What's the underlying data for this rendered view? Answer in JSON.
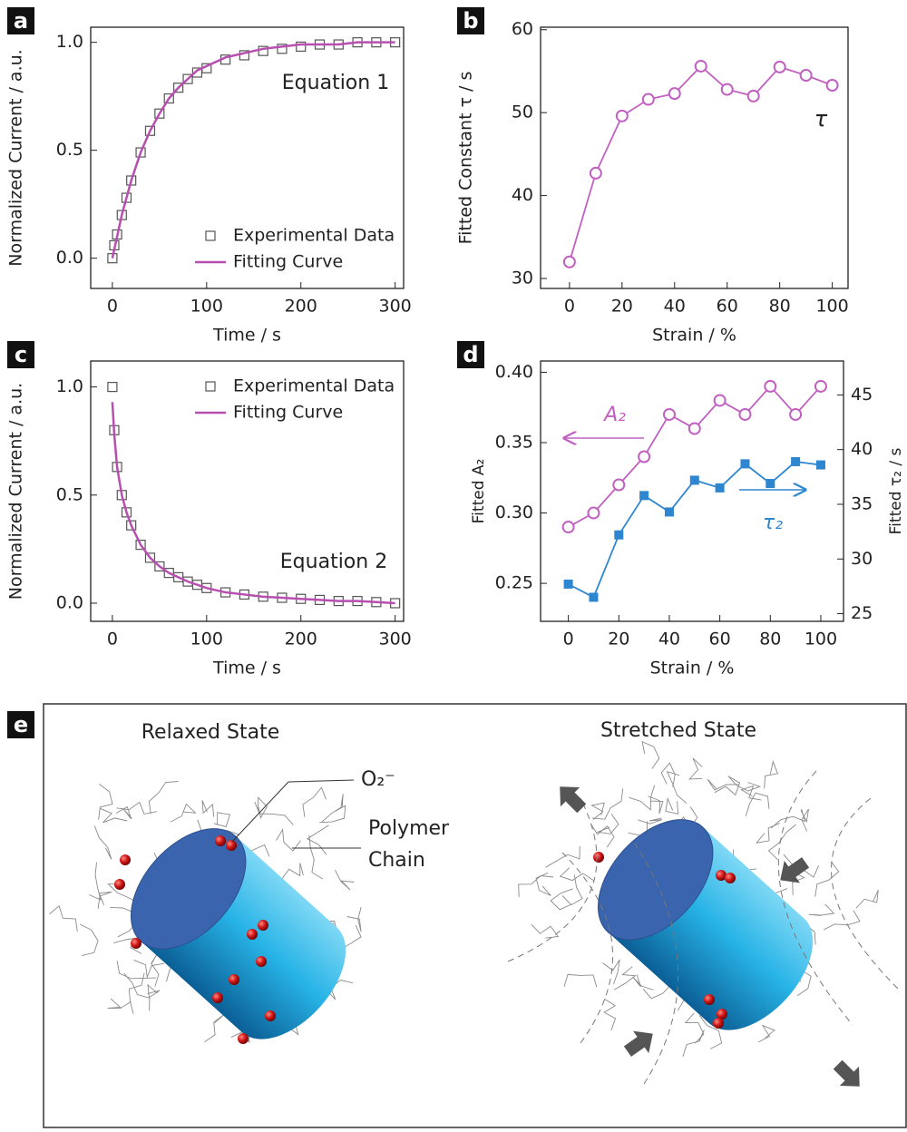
{
  "chart_data": [
    {
      "type": "line",
      "label": "a",
      "xlabel": "Time / s",
      "ylabel": "Normalized Current / a.u.",
      "annotations": [
        "Equation 1"
      ],
      "x": [
        0,
        2,
        5,
        10,
        15,
        20,
        30,
        40,
        50,
        60,
        70,
        80,
        90,
        100,
        120,
        140,
        160,
        180,
        200,
        220,
        240,
        260,
        280,
        300
      ],
      "series": [
        {
          "name": "Experimental Data",
          "color": "#555555",
          "marker": "square",
          "values": [
            0,
            0.06,
            0.11,
            0.2,
            0.28,
            0.36,
            0.49,
            0.59,
            0.67,
            0.74,
            0.79,
            0.83,
            0.86,
            0.88,
            0.92,
            0.94,
            0.96,
            0.97,
            0.98,
            0.99,
            0.99,
            1.0,
            1.0,
            1.0
          ]
        },
        {
          "name": "Fitting Curve",
          "color": "#b84fb0",
          "marker": "none",
          "values": [
            0,
            0.04,
            0.1,
            0.2,
            0.28,
            0.36,
            0.49,
            0.59,
            0.67,
            0.74,
            0.79,
            0.83,
            0.87,
            0.89,
            0.93,
            0.95,
            0.97,
            0.98,
            0.99,
            0.99,
            0.99,
            1.0,
            1.0,
            1.0
          ]
        }
      ],
      "xlim": [
        -23,
        309
      ],
      "ylim": [
        -0.14,
        1.07
      ],
      "xticks": [
        0,
        100,
        200,
        300
      ],
      "yticks": [
        {
          "value": 0,
          "label": "0.0"
        },
        0.5,
        {
          "value": 1,
          "label": "1.0"
        }
      ],
      "legend": "lower right"
    },
    {
      "type": "line",
      "label": "b",
      "xlabel": "Strain / %",
      "ylabel": "Fitted Constant τ / s",
      "annotations": [
        "τ"
      ],
      "x": [
        0,
        10,
        20,
        30,
        40,
        50,
        60,
        70,
        80,
        90,
        100
      ],
      "series": [
        {
          "color": "#c060c0",
          "marker": "circle",
          "values": [
            32,
            42.7,
            49.6,
            51.6,
            52.3,
            55.6,
            52.8,
            52.0,
            55.5,
            54.5,
            53.3
          ]
        }
      ],
      "xlim": [
        -11,
        106
      ],
      "ylim": [
        28.8,
        60.3
      ],
      "xticks": [
        0,
        20,
        40,
        60,
        80,
        100
      ],
      "yticks": [
        30,
        40,
        50,
        60
      ]
    },
    {
      "type": "line",
      "label": "c",
      "xlabel": "Time / s",
      "ylabel": "Normalized Current / a.u.",
      "annotations": [
        "Equation 2"
      ],
      "x": [
        0,
        2,
        5,
        10,
        15,
        20,
        30,
        40,
        50,
        60,
        70,
        80,
        90,
        100,
        120,
        140,
        160,
        180,
        200,
        220,
        240,
        260,
        280,
        300
      ],
      "series": [
        {
          "name": "Experimental Data",
          "color": "#555555",
          "marker": "square",
          "values": [
            1.0,
            0.8,
            0.63,
            0.5,
            0.42,
            0.36,
            0.27,
            0.21,
            0.17,
            0.14,
            0.12,
            0.1,
            0.085,
            0.07,
            0.05,
            0.04,
            0.03,
            0.025,
            0.02,
            0.015,
            0.01,
            0.01,
            0.005,
            0.0
          ]
        },
        {
          "name": "Fitting Curve",
          "color": "#b84fb0",
          "marker": "none",
          "values": [
            0.93,
            0.78,
            0.63,
            0.5,
            0.42,
            0.36,
            0.27,
            0.21,
            0.17,
            0.14,
            0.12,
            0.1,
            0.085,
            0.07,
            0.05,
            0.04,
            0.03,
            0.025,
            0.02,
            0.015,
            0.01,
            0.01,
            0.005,
            0.0
          ]
        }
      ],
      "xlim": [
        -23,
        309
      ],
      "ylim": [
        -0.084,
        1.12
      ],
      "xticks": [
        0,
        100,
        200,
        300
      ],
      "yticks": [
        {
          "value": 0,
          "label": "0.0"
        },
        0.5,
        {
          "value": 1,
          "label": "1.0"
        }
      ],
      "legend": "upper right"
    },
    {
      "type": "line",
      "label": "d",
      "xlabel": "Strain / %",
      "ylabel": "Fitted A₂",
      "y2label": "Fitted τ₂ / s",
      "annotations": [
        "A₂",
        "τ₂"
      ],
      "x": [
        0,
        10,
        20,
        30,
        40,
        50,
        60,
        70,
        80,
        90,
        100
      ],
      "series": [
        {
          "color": "#c060c0",
          "marker": "circle",
          "values": [
            0.29,
            0.3,
            0.32,
            0.34,
            0.37,
            0.36,
            0.38,
            0.37,
            0.39,
            0.37,
            0.39
          ]
        },
        {
          "color": "#2e86d0",
          "marker": "filled-square",
          "axis": "y2",
          "values": [
            27.7,
            26.5,
            32.2,
            35.8,
            34.3,
            37.2,
            36.5,
            38.7,
            36.9,
            38.9,
            38.6
          ]
        }
      ],
      "xlim": [
        -11,
        109
      ],
      "ylim": [
        0.223,
        0.408
      ],
      "y2lim": [
        24.3,
        48.1
      ],
      "xticks": [
        0,
        20,
        40,
        60,
        80,
        100
      ],
      "yticks": [
        0.25,
        {
          "value": 0.3,
          "label": "0.30"
        },
        0.35,
        {
          "value": 0.4,
          "label": "0.40"
        }
      ],
      "y2ticks": [
        25,
        30,
        35,
        40,
        45
      ]
    }
  ],
  "diagram": {
    "label": "e",
    "relaxed": "Relaxed State",
    "stretched": "Stretched State",
    "ion": "O₂⁻",
    "polymer": [
      "Polymer",
      "Chain"
    ]
  }
}
